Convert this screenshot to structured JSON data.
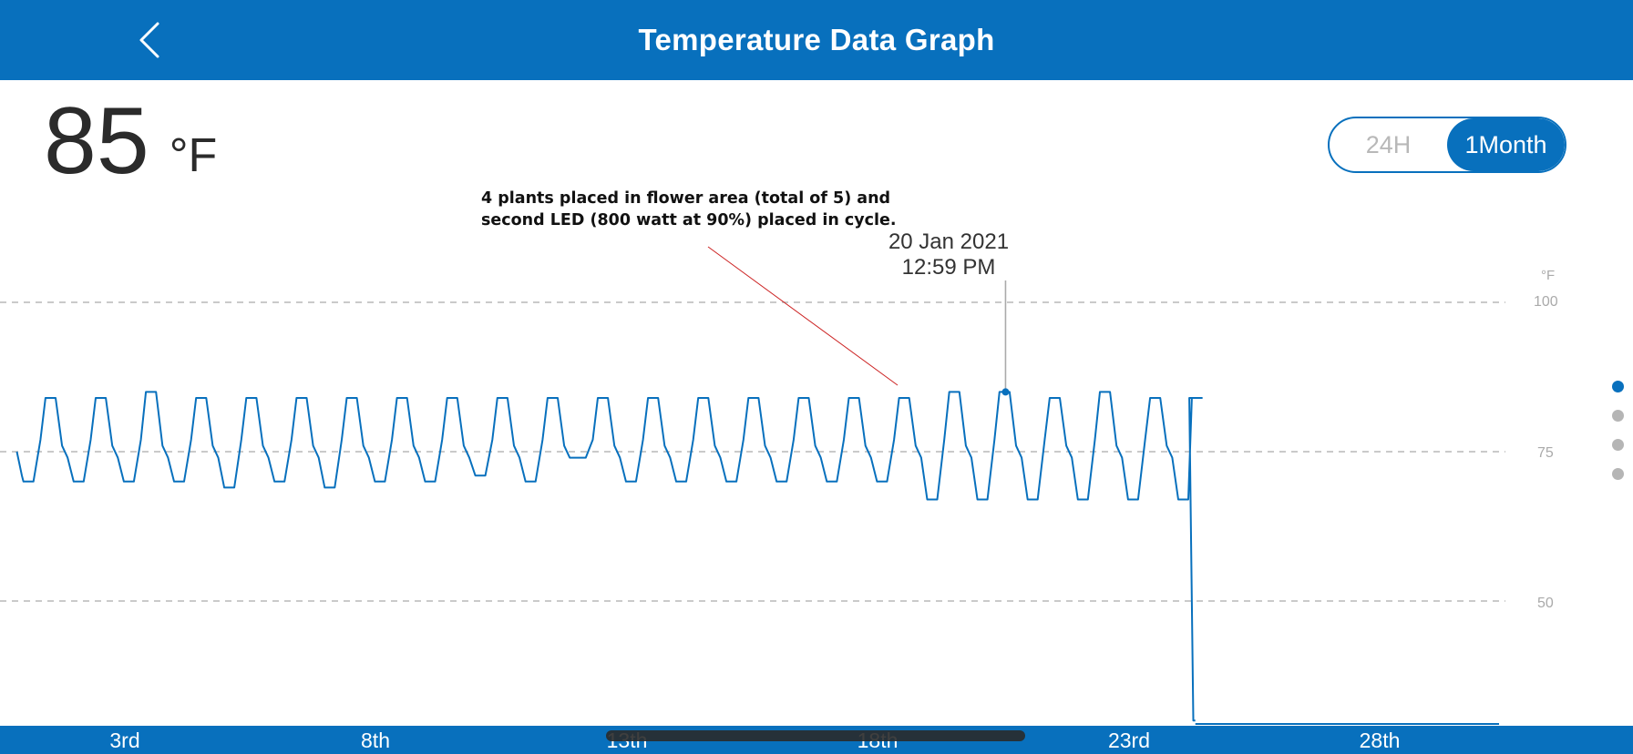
{
  "header": {
    "title": "Temperature Data Graph"
  },
  "reading": {
    "value": "85",
    "unit": "°F"
  },
  "range_toggle": {
    "options": [
      "24H",
      "1Month"
    ],
    "selected": "1Month"
  },
  "annotation": {
    "line1": "4 plants placed in flower area (total of 5) and",
    "line2": "second LED (800 watt at 90%) placed in cycle."
  },
  "tooltip": {
    "date": "20 Jan 2021",
    "time": "12:59 PM"
  },
  "colors": {
    "accent": "#0870bd",
    "annotation_line": "#cc2222"
  },
  "pager": {
    "count": 4,
    "active_index": 0
  },
  "chart_data": {
    "type": "line",
    "y_unit": "°F",
    "y_ticks": [
      100,
      75,
      50
    ],
    "x_ticks": [
      "3rd",
      "8th",
      "13th",
      "18th",
      "23rd",
      "28th"
    ],
    "grid": "dashed horizontal",
    "selected_point": {
      "day": 20.54,
      "value": 85
    },
    "series": [
      {
        "daily_highs": [
          84,
          84,
          85,
          84,
          84,
          84,
          84,
          84,
          84,
          84,
          84,
          84,
          84,
          84,
          84,
          84,
          84,
          84,
          85,
          85,
          84,
          85,
          84
        ],
        "daily_lows": [
          70,
          70,
          70,
          70,
          69,
          70,
          69,
          70,
          70,
          71,
          70,
          74,
          70,
          70,
          70,
          70,
          70,
          70,
          67,
          67,
          67,
          67,
          67,
          67
        ],
        "ends_day": 24.2,
        "final_value": 30
      }
    ]
  }
}
